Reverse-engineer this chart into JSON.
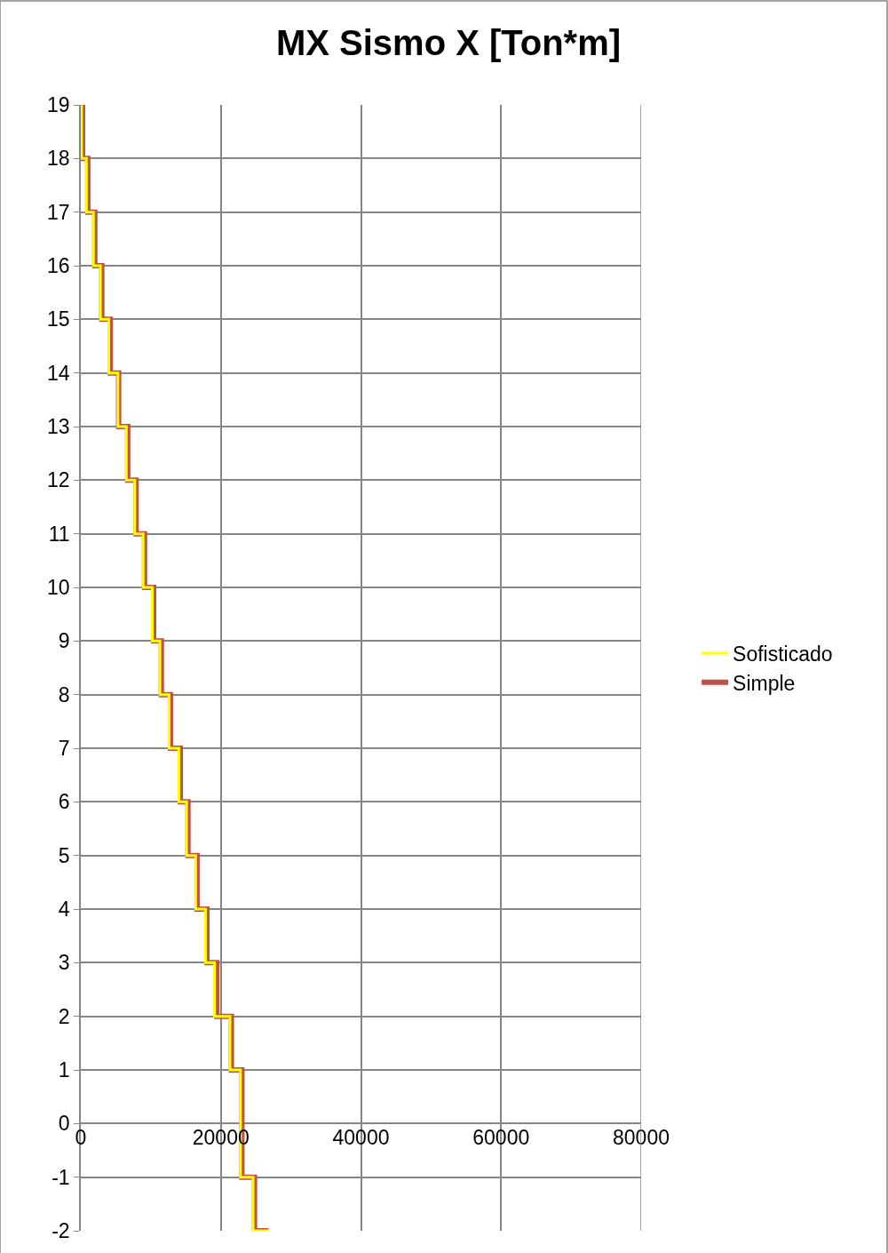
{
  "chart_data": {
    "type": "line",
    "title": "MX Sismo X [Ton*m]",
    "series": [
      {
        "name": "Sofisticado",
        "color": "#ffff00",
        "x": [
          100,
          100,
          800,
          800,
          1800,
          1800,
          2800,
          2800,
          4000,
          4000,
          5300,
          5300,
          6500,
          6500,
          7700,
          7700,
          8900,
          8900,
          10200,
          10200,
          11300,
          11300,
          12600,
          12600,
          14000,
          14000,
          15100,
          15100,
          16400,
          16400,
          17800,
          17800,
          19100,
          19100,
          21300,
          21300,
          22800,
          22800,
          24600,
          24600,
          26800
        ],
        "values": [
          19,
          18,
          18,
          17,
          17,
          16,
          16,
          15,
          15,
          14,
          14,
          13,
          13,
          12,
          12,
          11,
          11,
          10,
          10,
          9,
          9,
          8,
          8,
          7,
          7,
          6,
          6,
          5,
          5,
          4,
          4,
          3,
          3,
          2,
          2,
          1,
          1,
          -1,
          -1,
          -2,
          -2
        ]
      },
      {
        "name": "Simple",
        "color": "#c0504d",
        "x": [
          250,
          250,
          1000,
          1000,
          2000,
          2000,
          3000,
          3000,
          4200,
          4200,
          5400,
          5400,
          6700,
          6700,
          7900,
          7900,
          9100,
          9100,
          10400,
          10400,
          11500,
          11500,
          12800,
          12800,
          14200,
          14200,
          15300,
          15300,
          16600,
          16600,
          18000,
          18000,
          19400,
          19400,
          21500,
          21500,
          23000,
          23000,
          24800,
          24800,
          26800
        ],
        "values": [
          19,
          18,
          18,
          17,
          17,
          16,
          16,
          15,
          15,
          14,
          14,
          13,
          13,
          12,
          12,
          11,
          11,
          10,
          10,
          9,
          9,
          8,
          8,
          7,
          7,
          6,
          6,
          5,
          5,
          4,
          4,
          3,
          3,
          2,
          2,
          1,
          1,
          -1,
          -1,
          -2,
          -2
        ]
      }
    ],
    "xlim": [
      0,
      80000
    ],
    "xticks": [
      0,
      20000,
      40000,
      60000,
      80000
    ],
    "ylim": [
      -2,
      19
    ],
    "yticks": [
      -2,
      -1,
      0,
      1,
      2,
      3,
      4,
      5,
      6,
      7,
      8,
      9,
      10,
      11,
      12,
      13,
      14,
      15,
      16,
      17,
      18,
      19
    ],
    "grid": true,
    "legend": "right",
    "marker": "none",
    "line_style": "solid"
  }
}
